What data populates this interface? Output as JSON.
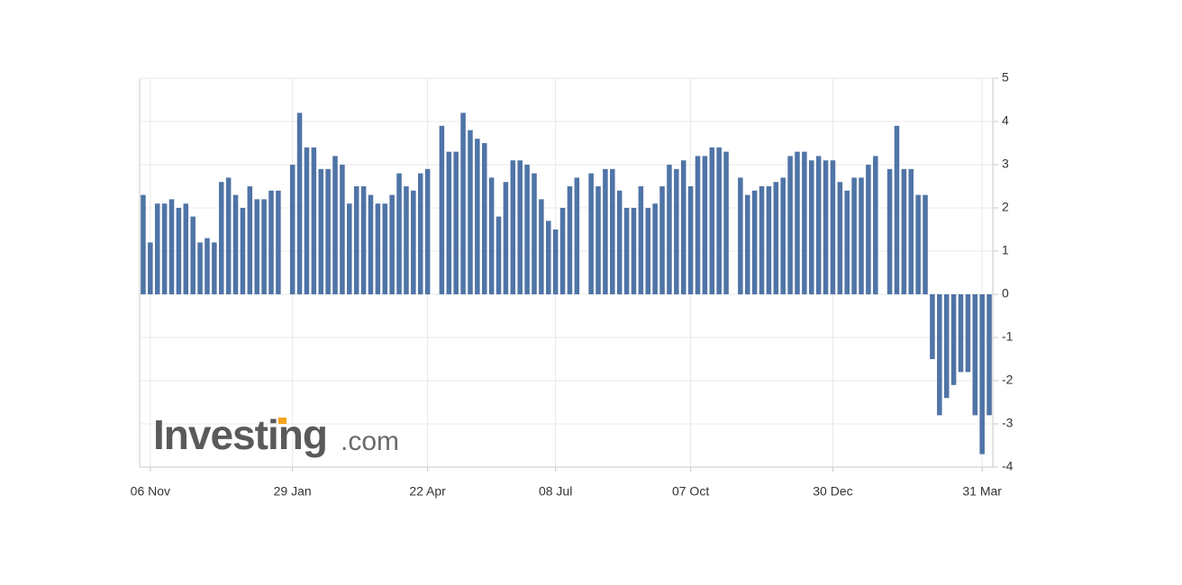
{
  "chart_data": {
    "type": "bar",
    "logo": {
      "name": "Investing",
      "suffix": ".com"
    },
    "color": "#4f74a6",
    "grid": true,
    "y_axis_side": "right",
    "ylim": [
      -4,
      5
    ],
    "yticks": [
      5,
      4,
      3,
      2,
      1,
      0,
      -1,
      -2,
      -3,
      -4
    ],
    "categories": [
      null,
      "06 Nov",
      null,
      null,
      null,
      null,
      null,
      null,
      null,
      null,
      null,
      null,
      null,
      null,
      null,
      null,
      null,
      null,
      null,
      null,
      null,
      "29 Jan",
      null,
      null,
      null,
      null,
      null,
      null,
      null,
      null,
      null,
      null,
      null,
      null,
      null,
      null,
      null,
      null,
      null,
      null,
      "22 Apr",
      null,
      null,
      null,
      null,
      null,
      null,
      null,
      null,
      null,
      null,
      null,
      null,
      null,
      null,
      null,
      null,
      null,
      "08 Jul",
      null,
      null,
      null,
      null,
      null,
      null,
      null,
      null,
      null,
      null,
      null,
      null,
      null,
      null,
      null,
      null,
      null,
      null,
      "07 Oct",
      null,
      null,
      null,
      null,
      null,
      null,
      null,
      null,
      null,
      null,
      null,
      null,
      null,
      null,
      null,
      null,
      null,
      null,
      null,
      "30 Dec",
      null,
      null,
      null,
      null,
      null,
      null,
      null,
      null,
      null,
      null,
      null,
      null,
      null,
      null,
      null,
      null,
      null,
      null,
      null,
      null,
      "31 Mar",
      null
    ],
    "values": [
      2.3,
      1.2,
      2.1,
      2.1,
      2.2,
      2.0,
      2.1,
      1.8,
      1.2,
      1.3,
      1.2,
      2.6,
      2.7,
      2.3,
      2.0,
      2.5,
      2.2,
      2.2,
      2.4,
      2.4,
      null,
      3.0,
      4.2,
      3.4,
      3.4,
      2.9,
      2.9,
      3.2,
      3.0,
      2.1,
      2.5,
      2.5,
      2.3,
      2.1,
      2.1,
      2.3,
      2.8,
      2.5,
      2.4,
      2.8,
      2.9,
      null,
      3.9,
      3.3,
      3.3,
      4.2,
      3.8,
      3.6,
      3.5,
      2.7,
      1.8,
      2.6,
      3.1,
      3.1,
      3.0,
      2.8,
      2.2,
      1.7,
      1.5,
      2.0,
      2.5,
      2.7,
      null,
      2.8,
      2.5,
      2.9,
      2.9,
      2.4,
      2.0,
      2.0,
      2.5,
      2.0,
      2.1,
      2.5,
      3.0,
      2.9,
      3.1,
      2.5,
      3.2,
      3.2,
      3.4,
      3.4,
      3.3,
      null,
      2.7,
      2.3,
      2.4,
      2.5,
      2.5,
      2.6,
      2.7,
      3.2,
      3.3,
      3.3,
      3.1,
      3.2,
      3.1,
      3.1,
      2.6,
      2.4,
      2.7,
      2.7,
      3.0,
      3.2,
      null,
      2.9,
      3.9,
      2.9,
      2.9,
      2.3,
      2.3,
      -1.5,
      -2.8,
      -2.4,
      -2.1,
      -1.8,
      -1.8,
      -2.8,
      -3.7,
      -2.8
    ]
  }
}
